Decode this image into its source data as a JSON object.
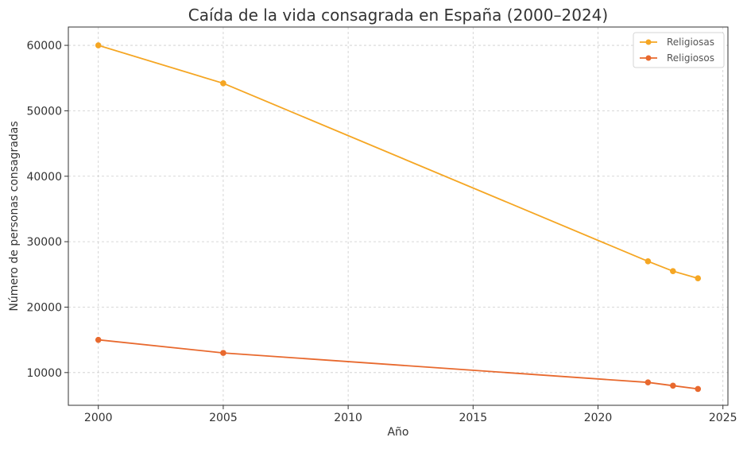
{
  "chart_data": {
    "type": "line",
    "title": "Caída de la vida consagrada en España (2000–2024)",
    "xlabel": "Año",
    "ylabel": "Número de personas consagradas",
    "xlim": [
      1998.8,
      2025.2
    ],
    "ylim": [
      5000,
      62800
    ],
    "x_ticks": [
      2000,
      2005,
      2010,
      2015,
      2020,
      2025
    ],
    "y_ticks": [
      10000,
      20000,
      30000,
      40000,
      50000,
      60000
    ],
    "grid": true,
    "legend_position": "top-right",
    "series": [
      {
        "name": "Religiosas",
        "color": "#f5a623",
        "x": [
          2000,
          2005,
          2022,
          2023,
          2024
        ],
        "y": [
          60000,
          54200,
          27000,
          25500,
          24400
        ]
      },
      {
        "name": "Religiosos",
        "color": "#e8692e",
        "x": [
          2000,
          2005,
          2022,
          2023,
          2024
        ],
        "y": [
          15000,
          13000,
          8500,
          8000,
          7500
        ]
      }
    ]
  }
}
